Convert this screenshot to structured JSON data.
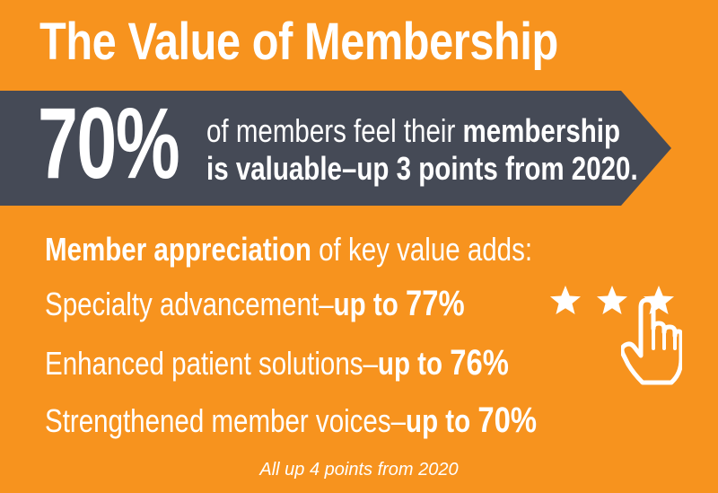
{
  "title": "The Value of Membership",
  "banner": {
    "stat": "70%",
    "line1_normal": "of members feel their ",
    "line1_bold": "membership",
    "line2_bold": "is valuable–up 3 points from 2020."
  },
  "appreciation": {
    "heading_bold": "Member appreciation",
    "heading_normal": " of key value adds:",
    "items": [
      {
        "label": "Specialty advancement–",
        "prefix": "up to ",
        "value": "77%"
      },
      {
        "label": "Enhanced patient solutions–",
        "prefix": "up to ",
        "value": "76%"
      },
      {
        "label": "Strengthened member voices–",
        "prefix": "up to ",
        "value": "70%"
      }
    ]
  },
  "footnote": "All up 4 points from 2020",
  "icons": {
    "stars": "star-icon",
    "hand": "pointing-hand-icon"
  },
  "colors": {
    "background": "#f7931e",
    "banner": "#454a56",
    "text": "#ffffff"
  }
}
